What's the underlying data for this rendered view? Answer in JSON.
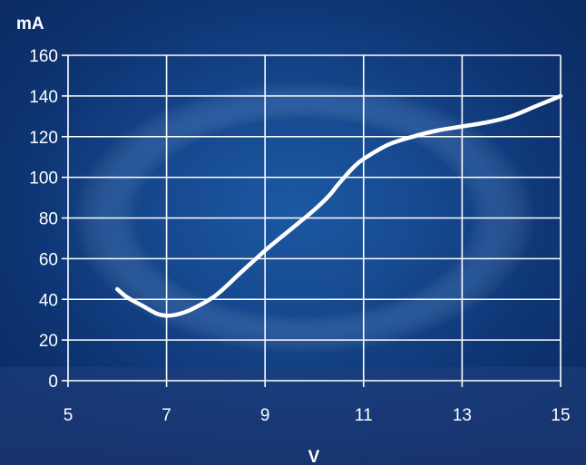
{
  "chart_data": {
    "type": "line",
    "xlabel": "V",
    "ylabel": "mA",
    "xlim": [
      5,
      15
    ],
    "ylim": [
      0,
      160
    ],
    "x_ticks": [
      5,
      7,
      9,
      11,
      13,
      15
    ],
    "y_ticks": [
      0,
      20,
      40,
      60,
      80,
      100,
      120,
      140,
      160
    ],
    "grid": true,
    "legend": "none",
    "colors": {
      "line": "#ffffff",
      "grid": "#ffffff",
      "background": "#0f3a78"
    },
    "series": [
      {
        "x": [
          6.0,
          6.2,
          6.5,
          6.8,
          7.0,
          7.2,
          7.5,
          8.0,
          8.5,
          9.0,
          9.5,
          10.0,
          10.3,
          10.5,
          10.8,
          11.0,
          11.5,
          12.0,
          12.5,
          13.0,
          13.5,
          14.0,
          14.5,
          15.0
        ],
        "y": [
          45,
          41,
          37,
          33,
          32,
          32.5,
          35,
          42,
          53,
          64,
          74,
          84,
          91,
          97,
          105,
          109,
          116,
          120,
          123,
          125,
          127,
          130,
          135,
          140
        ]
      }
    ]
  }
}
